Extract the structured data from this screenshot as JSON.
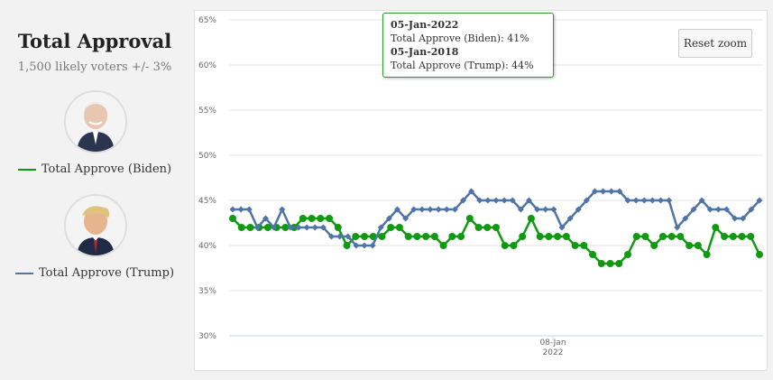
{
  "header": {
    "title": "Total Approval",
    "subtitle": "1,500 likely voters +/- 3%"
  },
  "legend": [
    {
      "label": "Total Approve (Biden)",
      "color": "#119911",
      "avatar_icon": "biden-avatar-icon"
    },
    {
      "label": "Total Approve (Trump)",
      "color": "#4f74a6",
      "avatar_icon": "trump-avatar-icon"
    }
  ],
  "reset_zoom_label": "Reset zoom",
  "tooltip": {
    "date1": "05-Jan-2022",
    "line1": "Total Approve (Biden): 41%",
    "date2": "05-Jan-2018",
    "line2": "Total Approve (Trump): 44%"
  },
  "chart_data": {
    "type": "line",
    "y_ticks": [
      "30%",
      "35%",
      "40%",
      "45%",
      "50%",
      "55%",
      "60%",
      "65%"
    ],
    "ylim": [
      30,
      65
    ],
    "x_tick_label": "08-Jan",
    "x_tick_sublabel": "2022",
    "grid": true,
    "series": [
      {
        "name": "Total Approve (Biden)",
        "color": "#119911",
        "marker": "circle",
        "values": [
          43,
          42,
          42,
          42,
          42,
          42,
          42,
          42,
          43,
          43,
          43,
          43,
          42,
          40,
          41,
          41,
          41,
          41,
          42,
          42,
          41,
          41,
          41,
          41,
          40,
          41,
          41,
          43,
          42,
          42,
          42,
          40,
          40,
          41,
          43,
          41,
          41,
          41,
          41,
          40,
          40,
          39,
          38,
          38,
          38,
          39,
          41,
          41,
          40,
          41,
          41,
          41,
          40,
          40,
          39,
          42,
          41,
          41,
          41,
          41,
          39
        ]
      },
      {
        "name": "Total Approve (Trump)",
        "color": "#4f74a6",
        "marker": "diamond",
        "values": [
          44,
          44,
          44,
          42,
          43,
          42,
          44,
          42,
          42,
          42,
          42,
          42,
          41,
          41,
          41,
          40,
          40,
          40,
          42,
          43,
          44,
          43,
          44,
          44,
          44,
          44,
          44,
          44,
          45,
          46,
          45,
          45,
          45,
          45,
          45,
          44,
          45,
          44,
          44,
          44,
          42,
          43,
          44,
          45,
          46,
          46,
          46,
          46,
          45,
          45,
          45,
          45,
          45,
          45,
          42,
          43,
          44,
          45,
          44,
          44,
          44,
          43,
          43,
          44,
          45
        ]
      }
    ]
  }
}
